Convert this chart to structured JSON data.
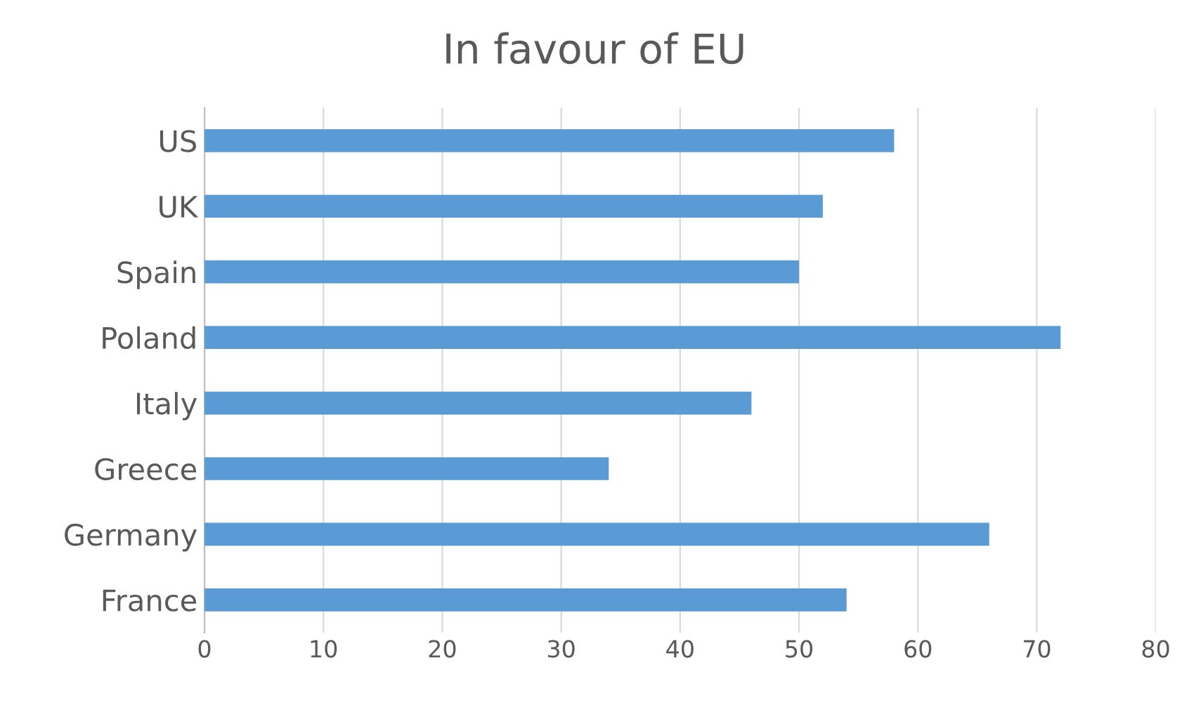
{
  "chart_data": {
    "type": "bar",
    "orientation": "horizontal",
    "title": "In favour of EU",
    "categories": [
      "US",
      "UK",
      "Spain",
      "Poland",
      "Italy",
      "Greece",
      "Germany",
      "France"
    ],
    "values": [
      58,
      52,
      50,
      72,
      46,
      34,
      66,
      54
    ],
    "color": "#5b9bd5",
    "xlim": [
      0,
      80
    ],
    "xticks": [
      0,
      10,
      20,
      30,
      40,
      50,
      60,
      70,
      80
    ],
    "grid": "x"
  }
}
